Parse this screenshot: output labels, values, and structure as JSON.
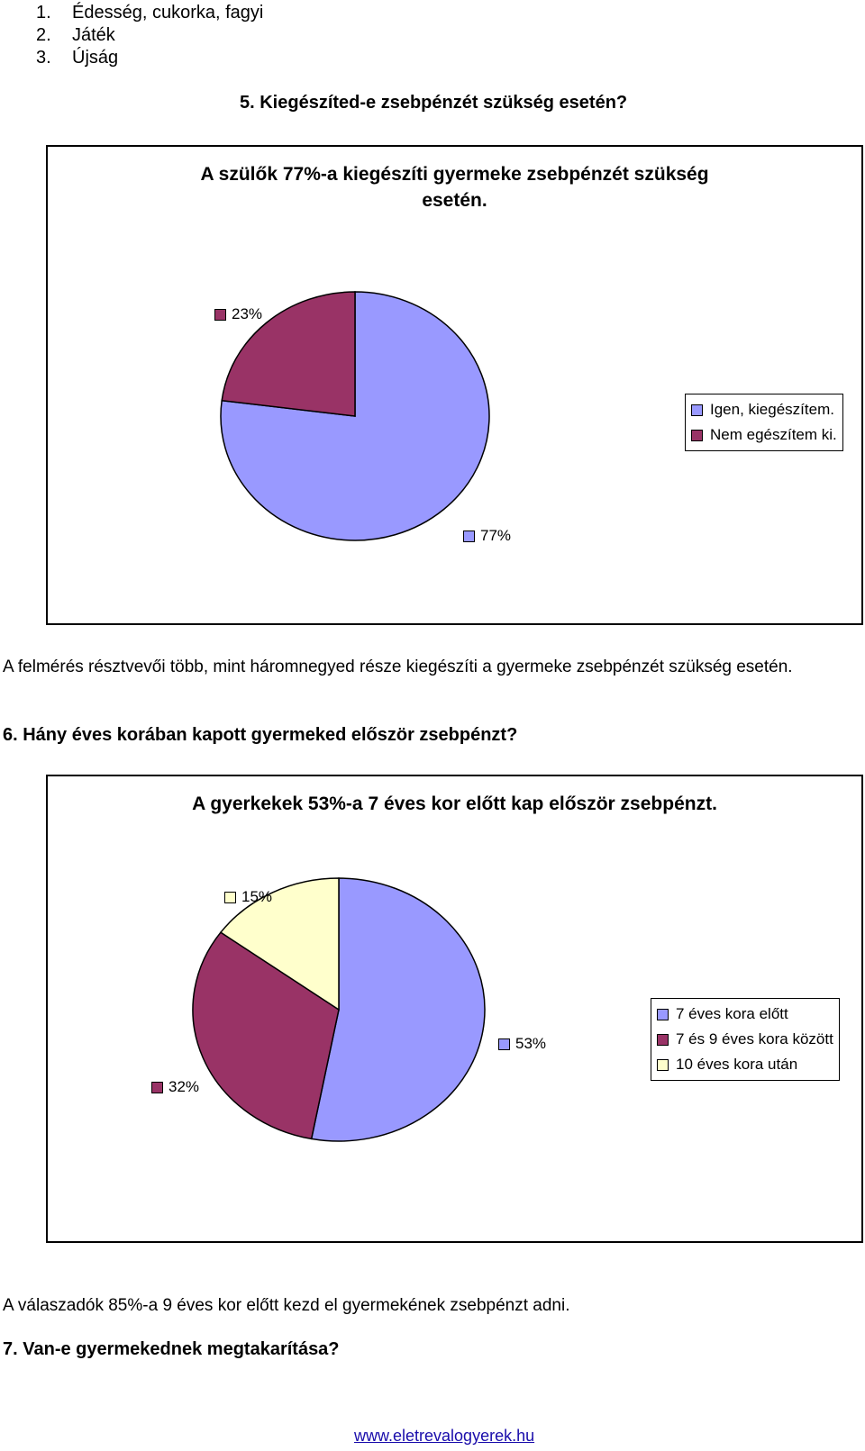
{
  "list": {
    "items": [
      {
        "num": "1.",
        "text": "Édesség, cukorka, fagyi"
      },
      {
        "num": "2.",
        "text": "Játék"
      },
      {
        "num": "3.",
        "text": "Újság"
      }
    ]
  },
  "question5": "5. Kiegészíted-e zsebpénzét szükség esetén?",
  "chart1": {
    "title_line1": "A szülők 77%-a kiegészíti gyermeke zsebpénzét szükség",
    "title_line2": "esetén.",
    "legend": [
      {
        "label": "Igen, kiegészítem.",
        "color": "#9999ff"
      },
      {
        "label": "Nem egészítem ki.",
        "color": "#993366"
      }
    ],
    "slice_labels": [
      "77%",
      "23%"
    ]
  },
  "paragraph5": "A felmérés résztvevői több, mint háromnegyed része kiegészíti a gyermeke zsebpénzét szükség esetén.",
  "question6": "6. Hány éves korában kapott gyermeked először zsebpénzt?",
  "chart2": {
    "title": "A gyerkekek 53%-a 7 éves kor előtt kap először zsebpénzt.",
    "legend": [
      {
        "label": "7 éves kora előtt",
        "color": "#9999ff"
      },
      {
        "label": "7 és 9 éves kora között",
        "color": "#993366"
      },
      {
        "label": "10 éves kora után",
        "color": "#ffffcc"
      }
    ],
    "slice_labels": [
      "53%",
      "32%",
      "15%"
    ]
  },
  "chart_data": [
    {
      "type": "pie",
      "title": "A szülők 77%-a kiegészíti gyermeke zsebpénzét szükség esetén.",
      "categories": [
        "Igen, kiegészítem.",
        "Nem egészítem ki."
      ],
      "values": [
        77,
        23
      ],
      "colors": [
        "#9999ff",
        "#993366"
      ],
      "legend_position": "right"
    },
    {
      "type": "pie",
      "title": "A gyerkekek 53%-a 7 éves kor előtt kap először zsebpénzt.",
      "categories": [
        "7 éves kora előtt",
        "7 és 9 éves kora között",
        "10 éves kora után"
      ],
      "values": [
        53,
        32,
        15
      ],
      "colors": [
        "#9999ff",
        "#993366",
        "#ffffcc"
      ],
      "legend_position": "right"
    }
  ],
  "paragraph6": "A válaszadók 85%-a 9 éves kor előtt kezd el gyermekének zsebpénzt adni.",
  "question7": "7. Van-e gyermekednek megtakarítása?",
  "footer": {
    "link": "www.eletrevalogyerek.hu"
  }
}
